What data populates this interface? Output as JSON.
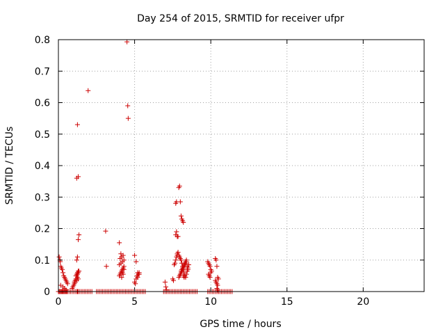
{
  "chart_data": {
    "type": "scatter",
    "title": "Day 254 of 2015, SRMTID for receiver ufpr",
    "xlabel": "GPS time / hours",
    "ylabel": "SRMTID / TECUs",
    "xlim": [
      0,
      24
    ],
    "ylim": [
      0,
      0.8
    ],
    "xticks": [
      0,
      5,
      10,
      15,
      20
    ],
    "yticks": [
      0,
      0.1,
      0.2,
      0.3,
      0.4,
      0.5,
      0.6,
      0.7,
      0.8
    ],
    "xtick_labels": [
      "0",
      "5",
      "10",
      "15",
      "20"
    ],
    "ytick_labels": [
      "0",
      "0.1",
      "0.2",
      "0.3",
      "0.4",
      "0.5",
      "0.6",
      "0.7",
      "0.8"
    ],
    "grid": true,
    "marker": "+",
    "series": [
      {
        "name": "SRMTID",
        "color": "#cc0000",
        "x": [
          0.0,
          0.05,
          0.1,
          0.15,
          0.2,
          0.25,
          0.3,
          0.35,
          0.4,
          0.45,
          0.5,
          0.55,
          0.6,
          0.7,
          0.8,
          0.9,
          1.0,
          1.1,
          1.2,
          1.25,
          1.3,
          1.4,
          1.5,
          1.6,
          1.7,
          1.8,
          1.9,
          2.0,
          2.1,
          2.2,
          0.05,
          0.1,
          0.12,
          0.15,
          0.2,
          0.25,
          0.3,
          0.35,
          0.4,
          0.45,
          0.5,
          0.55,
          0.6,
          0.15,
          0.3,
          0.4,
          0.5,
          0.9,
          0.95,
          1.0,
          1.05,
          1.1,
          1.15,
          1.2,
          1.25,
          1.3,
          1.05,
          1.1,
          1.15,
          1.2,
          1.25,
          1.3,
          1.35,
          1.2,
          1.25,
          1.3,
          1.35,
          1.2,
          1.3,
          1.25,
          1.2,
          1.3,
          1.25,
          1.95,
          3.1,
          3.15,
          4.0,
          4.5,
          4.55,
          4.58,
          2.5,
          2.6,
          2.7,
          2.8,
          2.9,
          3.0,
          3.1,
          3.2,
          3.3,
          3.4,
          3.5,
          3.6,
          3.7,
          3.8,
          3.9,
          4.0,
          4.1,
          4.2,
          4.3,
          4.4,
          4.5,
          4.6,
          4.7,
          4.8,
          4.9,
          5.0,
          5.1,
          5.2,
          5.3,
          5.4,
          5.5,
          5.6,
          5.7,
          4.0,
          4.05,
          4.1,
          4.15,
          4.2,
          4.25,
          4.3,
          4.0,
          4.1,
          4.2,
          4.3,
          4.05,
          4.15,
          4.25,
          4.1,
          4.2,
          4.3,
          4.15,
          4.25,
          5.0,
          5.1,
          5.2,
          5.3,
          5.0,
          5.05,
          5.1,
          5.2,
          5.15,
          5.25,
          5.3,
          6.9,
          7.0,
          7.1,
          7.2,
          7.3,
          7.4,
          7.5,
          7.6,
          7.7,
          7.8,
          7.9,
          8.0,
          8.1,
          8.2,
          8.3,
          8.4,
          8.5,
          8.6,
          8.7,
          8.8,
          8.9,
          9.0,
          9.1,
          7.0,
          7.05,
          7.1,
          7.5,
          7.55,
          7.6,
          7.65,
          7.7,
          7.75,
          7.8,
          7.7,
          7.75,
          7.8,
          7.85,
          7.9,
          7.95,
          8.0,
          8.05,
          8.1,
          8.15,
          8.2,
          8.25,
          8.3,
          8.35,
          8.4,
          8.45,
          8.5,
          8.55,
          8.0,
          8.05,
          8.1,
          8.15,
          8.2,
          8.25,
          8.3,
          8.35,
          8.4,
          8.45,
          8.5,
          7.9,
          7.95,
          8.0,
          8.05,
          8.1,
          8.15,
          8.2,
          8.25,
          8.3,
          8.35,
          8.4,
          7.7,
          7.75,
          7.8,
          7.85,
          7.9,
          7.95,
          8.0,
          8.05,
          8.1,
          8.15,
          8.2,
          8.2,
          8.25,
          9.8,
          9.9,
          10.0,
          10.1,
          10.2,
          10.3,
          10.4,
          10.5,
          10.6,
          10.7,
          10.8,
          10.9,
          11.0,
          11.1,
          11.2,
          11.3,
          11.4,
          9.8,
          9.85,
          9.9,
          9.95,
          10.0,
          10.05,
          9.85,
          9.9,
          9.95,
          10.0,
          10.3,
          10.35,
          10.4,
          10.45,
          10.5,
          10.3,
          10.35,
          10.4,
          10.45,
          10.4,
          10.45,
          10.5
        ],
        "y": [
          0,
          0,
          0,
          0,
          0,
          0,
          0,
          0,
          0,
          0,
          0,
          0,
          0,
          0,
          0,
          0,
          0,
          0,
          0,
          0,
          0,
          0,
          0,
          0,
          0,
          0,
          0,
          0,
          0,
          0,
          0.11,
          0.1,
          0.095,
          0.08,
          0.075,
          0.07,
          0.06,
          0.05,
          0.045,
          0.04,
          0.035,
          0.03,
          0.025,
          0.02,
          0.015,
          0.01,
          0.005,
          0.01,
          0.015,
          0.02,
          0.03,
          0.035,
          0.05,
          0.055,
          0.06,
          0.065,
          0.025,
          0.03,
          0.04,
          0.05,
          0.055,
          0.06,
          0.065,
          0.1,
          0.11,
          0.165,
          0.18,
          0.36,
          0.365,
          0.53,
          0.035,
          0.04,
          0.045,
          0.638,
          0.192,
          0.08,
          0.155,
          0.793,
          0.59,
          0.55,
          0,
          0,
          0,
          0,
          0,
          0,
          0,
          0,
          0,
          0,
          0,
          0,
          0,
          0,
          0,
          0,
          0,
          0,
          0,
          0,
          0,
          0,
          0,
          0,
          0,
          0,
          0,
          0,
          0,
          0,
          0,
          0,
          0,
          0.05,
          0.055,
          0.06,
          0.065,
          0.07,
          0.075,
          0.08,
          0.085,
          0.09,
          0.095,
          0.1,
          0.105,
          0.11,
          0.115,
          0.12,
          0.06,
          0.07,
          0.045,
          0.055,
          0.115,
          0.095,
          0.06,
          0.055,
          0.03,
          0.025,
          0.04,
          0.045,
          0.05,
          0.055,
          0.06,
          0,
          0,
          0,
          0,
          0,
          0,
          0,
          0,
          0,
          0,
          0,
          0,
          0,
          0,
          0,
          0,
          0,
          0,
          0,
          0,
          0,
          0,
          0,
          0.03,
          0.015,
          0.005,
          0.04,
          0.035,
          0.085,
          0.09,
          0.1,
          0.11,
          0.115,
          0.18,
          0.19,
          0.12,
          0.125,
          0.115,
          0.11,
          0.105,
          0.1,
          0.09,
          0.08,
          0.07,
          0.06,
          0.05,
          0.045,
          0.055,
          0.065,
          0.075,
          0.085,
          0.055,
          0.065,
          0.07,
          0.075,
          0.08,
          0.085,
          0.09,
          0.095,
          0.1,
          0.08,
          0.07,
          0.045,
          0.05,
          0.055,
          0.06,
          0.065,
          0.07,
          0.075,
          0.08,
          0.085,
          0.09,
          0.095,
          0.28,
          0.285,
          0.175,
          0.175,
          0.33,
          0.335,
          0.285,
          0.24,
          0.23,
          0.225,
          0.22,
          0.05,
          0.045,
          0,
          0,
          0,
          0,
          0,
          0,
          0,
          0,
          0,
          0,
          0,
          0,
          0,
          0,
          0,
          0,
          0,
          0.095,
          0.09,
          0.085,
          0.08,
          0.07,
          0.065,
          0.055,
          0.05,
          0.045,
          0.06,
          0.105,
          0.1,
          0.08,
          0.045,
          0.04,
          0.035,
          0.03,
          0.025,
          0.02,
          0.01,
          0.005,
          0.0
        ]
      }
    ]
  }
}
